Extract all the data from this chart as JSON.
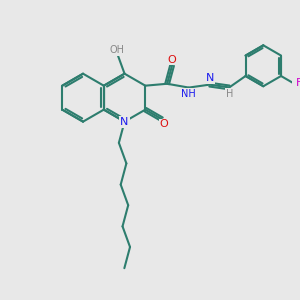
{
  "bg_color": "#e8e8e8",
  "bond_color": "#2d7d6e",
  "N_color": "#1a1aee",
  "O_color": "#dd1111",
  "F_color": "#cc00cc",
  "H_color": "#888888",
  "line_width": 1.5,
  "fig_size": [
    3.0,
    3.0
  ],
  "dpi": 100,
  "xlim": [
    0,
    10
  ],
  "ylim": [
    0,
    10
  ]
}
